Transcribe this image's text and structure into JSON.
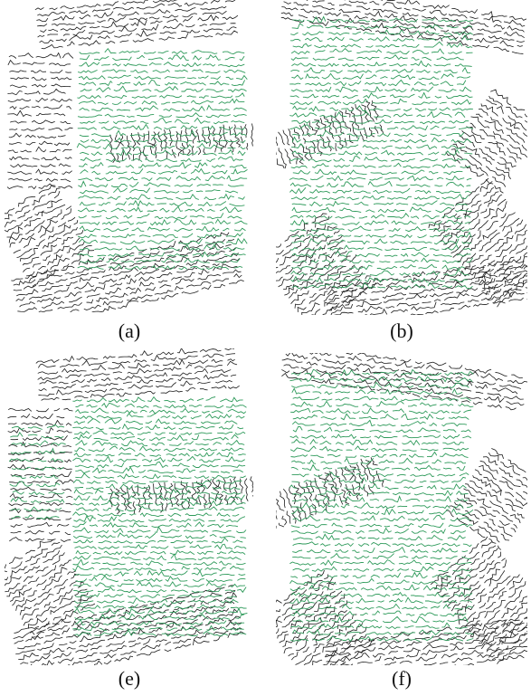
{
  "panels": [
    {
      "label": "(a)"
    },
    {
      "label": "(b)"
    },
    {
      "label": "(e)"
    },
    {
      "label": "(f)"
    }
  ]
}
